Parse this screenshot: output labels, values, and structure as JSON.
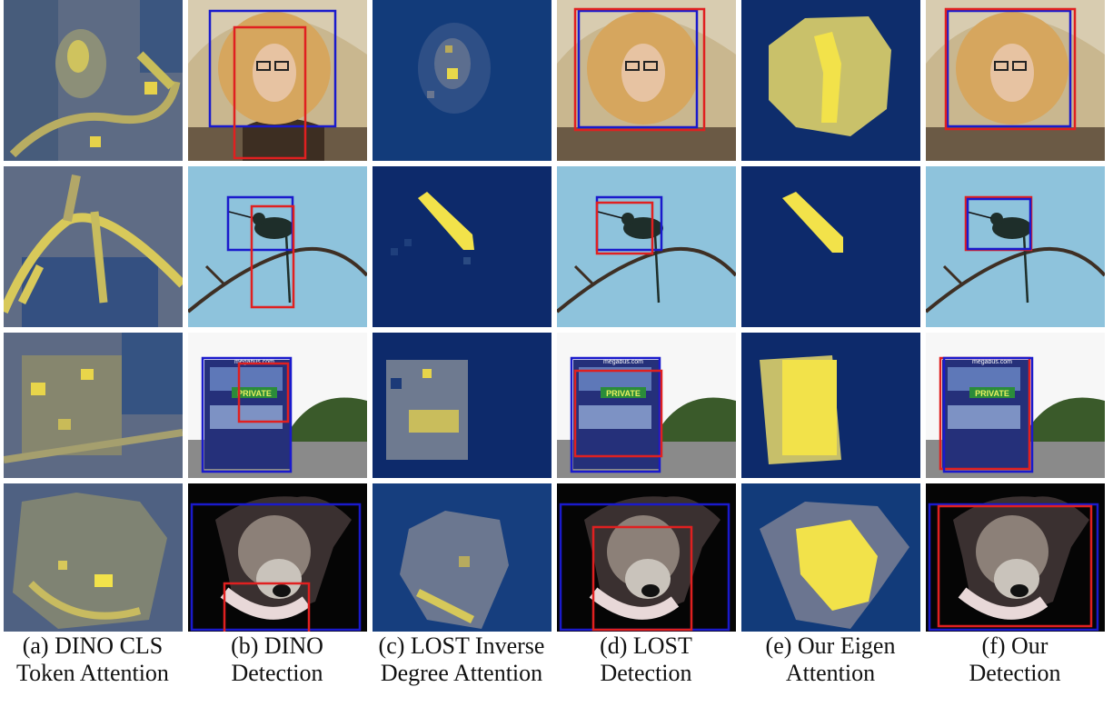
{
  "colors": {
    "attention_low": "#0d2a6b",
    "attention_mid": "#6f7a8f",
    "attention_high": "#f2e24a",
    "ground_truth_box": "#1a1acc",
    "predicted_box": "#e02020",
    "sky": "#8ec3dc",
    "dark_background": "#0a0a0a"
  },
  "captions": [
    {
      "line1": "(a) DINO CLS",
      "line2": "Token Attention"
    },
    {
      "line1": "(b) DINO",
      "line2": "Detection"
    },
    {
      "line1": "(c) LOST Inverse",
      "line2": "Degree Attention"
    },
    {
      "line1": "(d) LOST",
      "line2": "Detection"
    },
    {
      "line1": "(e) Our Eigen",
      "line2": "Attention"
    },
    {
      "line1": "(f) Our",
      "line2": "Detection"
    }
  ],
  "scene_text": {
    "bus_sign": "PRIVATE",
    "bus_url": "megabus.com"
  }
}
